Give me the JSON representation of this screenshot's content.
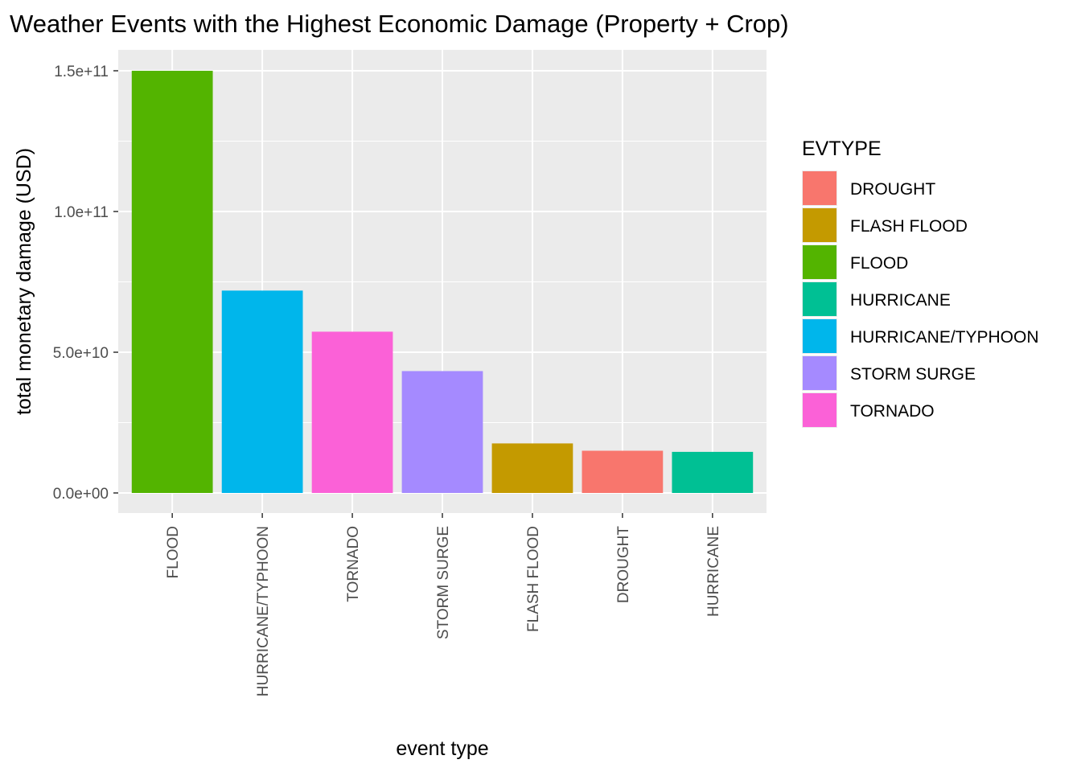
{
  "chart_data": {
    "type": "bar",
    "title": "Weather Events with the Highest Economic Damage (Property + Crop)",
    "xlabel": "event type",
    "ylabel": "total monetary damage (USD)",
    "categories": [
      "FLOOD",
      "HURRICANE/TYPHOON",
      "TORNADO",
      "STORM SURGE",
      "FLASH FLOOD",
      "DROUGHT",
      "HURRICANE"
    ],
    "values": [
      150000000000,
      71900000000,
      57300000000,
      43300000000,
      17600000000,
      15000000000,
      14600000000
    ],
    "ylim": [
      0,
      150000000000
    ],
    "yticks": [
      {
        "value": 0,
        "label": "0.0e+00"
      },
      {
        "value": 50000000000,
        "label": "5.0e+10"
      },
      {
        "value": 100000000000,
        "label": "1.0e+11"
      },
      {
        "value": 150000000000,
        "label": "1.5e+11"
      }
    ],
    "grid": true,
    "legend_position": "right",
    "legend": {
      "title": "EVTYPE",
      "entries": [
        {
          "label": "DROUGHT",
          "color": "#F8766D"
        },
        {
          "label": "FLASH FLOOD",
          "color": "#C49A00"
        },
        {
          "label": "FLOOD",
          "color": "#53B400"
        },
        {
          "label": "HURRICANE",
          "color": "#00C094"
        },
        {
          "label": "HURRICANE/TYPHOON",
          "color": "#00B6EB"
        },
        {
          "label": "STORM SURGE",
          "color": "#A58AFF"
        },
        {
          "label": "TORNADO",
          "color": "#FB61D7"
        }
      ]
    },
    "colors": {
      "panel_background": "#EBEBEB",
      "grid_major": "#FFFFFF",
      "tick_text": "#4D4D4D"
    }
  }
}
